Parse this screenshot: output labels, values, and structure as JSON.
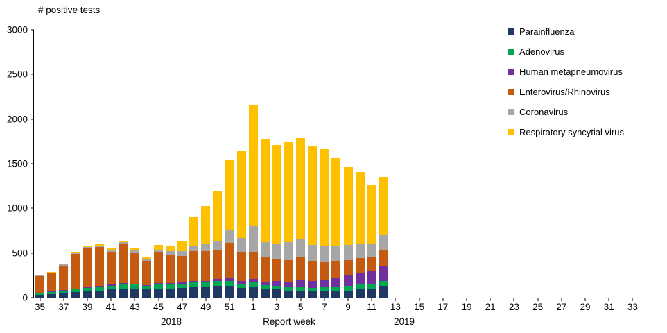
{
  "chart_data": {
    "type": "bar",
    "stacked": true,
    "title": "# positive tests",
    "xlabel": "Report week",
    "ylabel": "# positive tests",
    "ylim": [
      0,
      3000
    ],
    "yticks": [
      0,
      500,
      1000,
      1500,
      2000,
      2500,
      3000
    ],
    "grid": false,
    "legend_position": "top-right",
    "slot_count": 52,
    "x_tick_labels": [
      "35",
      "37",
      "39",
      "41",
      "43",
      "45",
      "47",
      "49",
      "51",
      "1",
      "3",
      "5",
      "7",
      "9",
      "11",
      "13",
      "15",
      "17",
      "19",
      "21",
      "23",
      "25",
      "27",
      "29",
      "31",
      "33"
    ],
    "years": {
      "left": "2018",
      "right": "2019"
    },
    "categories": [
      "35",
      "36",
      "37",
      "38",
      "39",
      "40",
      "41",
      "42",
      "43",
      "44",
      "45",
      "46",
      "47",
      "48",
      "49",
      "50",
      "51",
      "52",
      "1",
      "2",
      "3",
      "4",
      "5",
      "6",
      "7",
      "8",
      "9",
      "10",
      "11",
      "12"
    ],
    "series": [
      {
        "name": "Parainfluenza",
        "color": "#1F3864",
        "values": [
          30,
          40,
          50,
          60,
          70,
          80,
          90,
          100,
          100,
          90,
          100,
          100,
          110,
          120,
          120,
          130,
          130,
          110,
          120,
          100,
          90,
          80,
          80,
          70,
          70,
          70,
          80,
          90,
          100,
          130
        ]
      },
      {
        "name": "Adenovirus",
        "color": "#00A651",
        "values": [
          20,
          25,
          30,
          40,
          40,
          45,
          45,
          50,
          45,
          40,
          45,
          45,
          45,
          50,
          50,
          55,
          55,
          45,
          50,
          40,
          45,
          40,
          45,
          40,
          45,
          45,
          50,
          55,
          55,
          60
        ]
      },
      {
        "name": "Human metapneumovirus",
        "color": "#7030A0",
        "values": [
          5,
          5,
          5,
          5,
          10,
          10,
          10,
          10,
          10,
          10,
          15,
          15,
          15,
          20,
          20,
          25,
          30,
          30,
          40,
          40,
          50,
          60,
          80,
          80,
          90,
          100,
          120,
          130,
          140,
          160
        ]
      },
      {
        "name": "Enterovirus/Rhinovirus",
        "color": "#C55A11",
        "values": [
          190,
          205,
          275,
          385,
          430,
          430,
          370,
          440,
          350,
          270,
          350,
          320,
          300,
          330,
          330,
          330,
          400,
          330,
          300,
          280,
          240,
          240,
          250,
          220,
          200,
          200,
          170,
          170,
          160,
          190
        ]
      },
      {
        "name": "Coronavirus",
        "color": "#A6A6A6",
        "values": [
          5,
          5,
          10,
          10,
          15,
          15,
          15,
          20,
          20,
          15,
          30,
          40,
          50,
          60,
          80,
          100,
          140,
          150,
          290,
          160,
          180,
          200,
          200,
          180,
          180,
          170,
          170,
          160,
          150,
          160
        ]
      },
      {
        "name": "Respiratory syncytial virus",
        "color": "#FFC000",
        "values": [
          10,
          10,
          10,
          10,
          15,
          20,
          20,
          20,
          25,
          25,
          50,
          60,
          120,
          320,
          430,
          550,
          785,
          975,
          1350,
          1160,
          1105,
          1120,
          1135,
          1110,
          1075,
          975,
          870,
          805,
          655,
          650
        ]
      }
    ]
  }
}
